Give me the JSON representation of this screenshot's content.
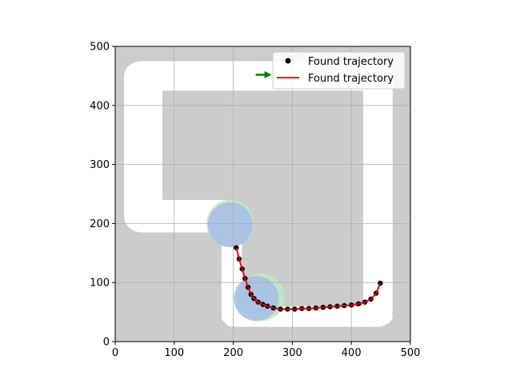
{
  "chart_data": {
    "type": "scatter",
    "title": "",
    "xlabel": "",
    "ylabel": "",
    "xlim": [
      0,
      500
    ],
    "ylim": [
      0,
      500
    ],
    "xticks": [
      "0",
      "100",
      "200",
      "300",
      "400",
      "500"
    ],
    "yticks": [
      "0",
      "100",
      "200",
      "300",
      "400",
      "500"
    ],
    "grid": true,
    "legend_position": "top-right",
    "colors": {
      "obstacle": "#cccccc",
      "free": "#ffffff",
      "trajectory_line": "#ff0000",
      "trajectory_points": "#000000",
      "blue_circle": "#a8bfe6",
      "green_circle": "#bfe8bf",
      "arrow": "#008000",
      "grid": "#b0b0b0"
    },
    "series": [
      {
        "name": "Found trajectory",
        "kind": "points",
        "x": [
          205,
          210,
          215,
          220,
          225,
          230,
          235,
          242,
          250,
          258,
          268,
          280,
          292,
          304,
          316,
          328,
          340,
          352,
          364,
          376,
          388,
          400,
          412,
          423,
          433,
          442,
          449
        ],
        "y": [
          159,
          140,
          123,
          107,
          92,
          80,
          73,
          67,
          63,
          60,
          57,
          55,
          55,
          55,
          56,
          56,
          57,
          58,
          59,
          60,
          61,
          62,
          64,
          67,
          72,
          82,
          99
        ]
      },
      {
        "name": "Found trajectory",
        "kind": "line",
        "x": [
          205,
          210,
          215,
          220,
          225,
          230,
          235,
          242,
          250,
          258,
          268,
          280,
          292,
          304,
          316,
          328,
          340,
          352,
          364,
          376,
          388,
          400,
          412,
          423,
          433,
          442,
          449
        ],
        "y": [
          159,
          140,
          123,
          107,
          92,
          80,
          73,
          67,
          63,
          60,
          57,
          55,
          55,
          55,
          56,
          56,
          57,
          58,
          59,
          60,
          61,
          62,
          64,
          67,
          72,
          82,
          99
        ]
      }
    ],
    "free_space": {
      "outer_rects": [
        {
          "x0": 15,
          "y0": 185,
          "x1": 80,
          "y1": 475
        },
        {
          "x0": 15,
          "y0": 425,
          "x1": 470,
          "y1": 475
        },
        {
          "x0": 420,
          "y0": 25,
          "x1": 470,
          "y1": 475
        },
        {
          "x0": 180,
          "y0": 25,
          "x1": 470,
          "y1": 60
        },
        {
          "x0": 180,
          "y0": 25,
          "x1": 215,
          "y1": 240
        },
        {
          "x0": 15,
          "y0": 185,
          "x1": 215,
          "y1": 240
        }
      ]
    },
    "circles": [
      {
        "kind": "green",
        "cx": 195,
        "cy": 200,
        "r": 40
      },
      {
        "kind": "blue",
        "cx": 195,
        "cy": 198,
        "r": 38
      },
      {
        "kind": "green",
        "cx": 247,
        "cy": 75,
        "r": 40
      },
      {
        "kind": "blue",
        "cx": 239,
        "cy": 73,
        "r": 38
      }
    ],
    "arrow": {
      "x0": 238,
      "y0": 452,
      "x1": 265,
      "y1": 452
    }
  }
}
